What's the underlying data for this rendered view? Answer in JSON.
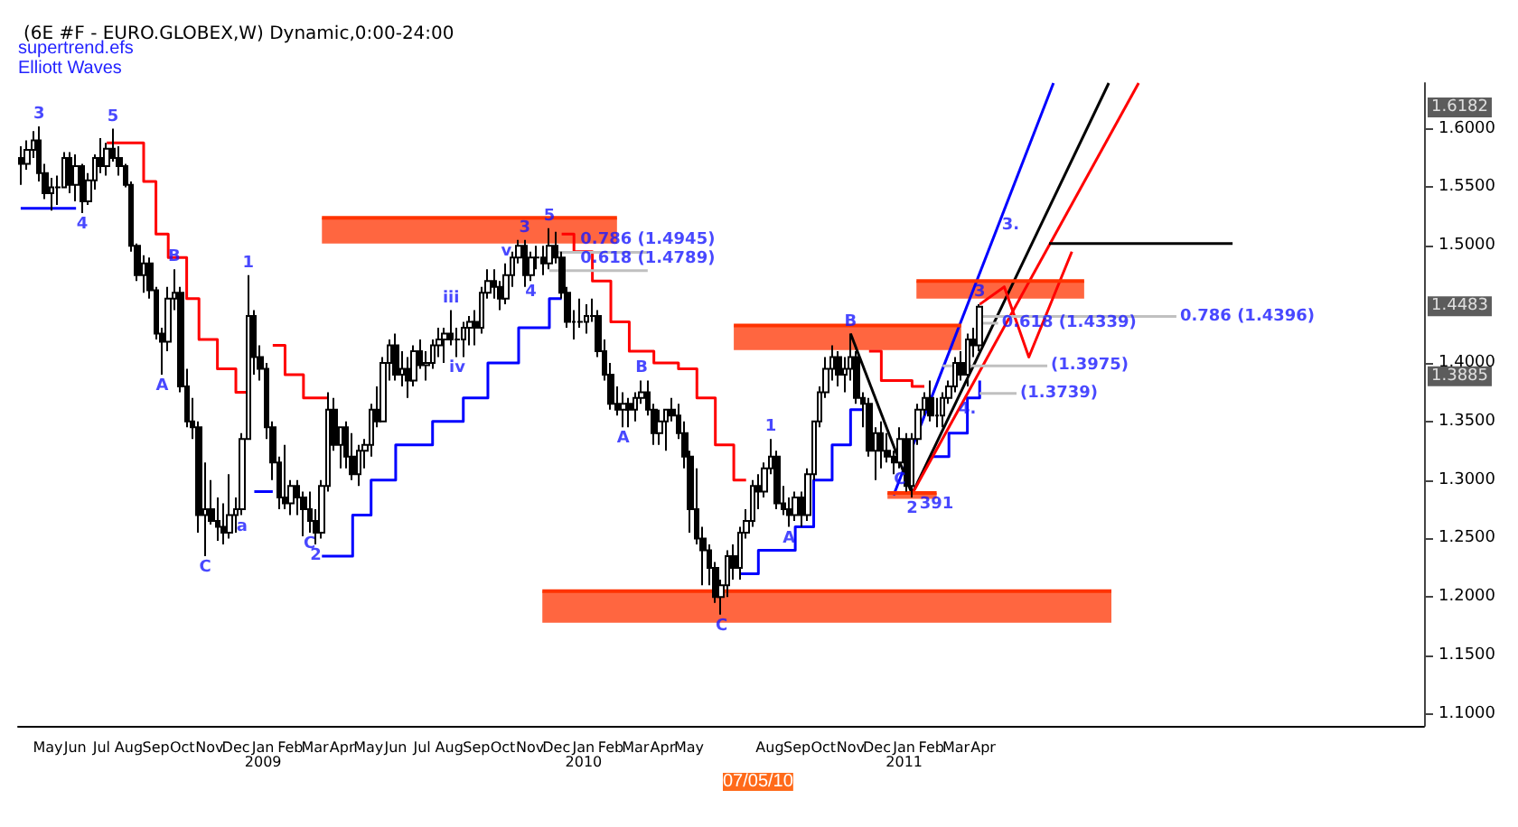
{
  "chart_data": {
    "type": "candlestick",
    "title": "(6E #F - EURO.GLOBEX,W) Dynamic,0:00-24:00",
    "x": [
      "2008-03-31",
      "2008-04-07",
      "2008-04-14",
      "2008-04-21",
      "2008-04-28",
      "2008-05-05",
      "2008-05-12",
      "2008-05-19",
      "2008-05-26",
      "2008-06-02",
      "2008-06-09",
      "2008-06-16",
      "2008-06-23",
      "2008-06-30",
      "2008-07-07",
      "2008-07-14",
      "2008-07-21",
      "2008-07-28",
      "2008-08-04",
      "2008-08-11",
      "2008-08-18",
      "2008-08-25",
      "2008-09-01",
      "2008-09-08",
      "2008-09-15",
      "2008-09-22",
      "2008-09-29",
      "2008-10-06",
      "2008-10-13",
      "2008-10-20",
      "2008-10-27",
      "2008-11-03",
      "2008-11-10",
      "2008-11-17",
      "2008-11-24",
      "2008-12-01",
      "2008-12-08",
      "2008-12-15",
      "2008-12-22",
      "2008-12-29",
      "2009-01-05",
      "2009-01-12",
      "2009-01-19",
      "2009-01-26",
      "2009-02-02",
      "2009-02-09",
      "2009-02-16",
      "2009-02-23",
      "2009-03-02",
      "2009-03-09",
      "2009-03-16",
      "2009-03-23",
      "2009-03-30",
      "2009-04-06",
      "2009-04-13",
      "2009-04-20",
      "2009-04-27",
      "2009-05-04",
      "2009-05-11",
      "2009-05-18",
      "2009-05-25",
      "2009-06-01",
      "2009-06-08",
      "2009-06-15",
      "2009-06-22",
      "2009-06-29",
      "2009-07-06",
      "2009-07-13",
      "2009-07-20",
      "2009-07-27",
      "2009-08-03",
      "2009-08-10",
      "2009-08-17",
      "2009-08-24",
      "2009-08-31",
      "2009-09-07",
      "2009-09-14",
      "2009-09-21",
      "2009-09-28",
      "2009-10-05",
      "2009-10-12",
      "2009-10-19",
      "2009-10-26",
      "2009-11-02",
      "2009-11-09",
      "2009-11-16",
      "2009-11-23",
      "2009-11-30",
      "2009-12-07",
      "2009-12-14",
      "2009-12-21",
      "2009-12-28",
      "2010-01-04",
      "2010-01-11",
      "2010-01-18",
      "2010-01-25",
      "2010-02-01",
      "2010-02-08",
      "2010-02-15",
      "2010-02-22",
      "2010-03-01",
      "2010-03-08",
      "2010-03-15",
      "2010-03-22",
      "2010-03-29",
      "2010-04-05",
      "2010-04-12",
      "2010-04-19",
      "2010-04-26",
      "2010-05-03",
      "2010-05-10",
      "2010-05-17",
      "2010-05-24",
      "2010-05-31",
      "2010-06-07",
      "2010-06-14",
      "2010-06-21",
      "2010-06-28",
      "2010-07-05",
      "2010-07-12",
      "2010-07-19",
      "2010-07-26",
      "2010-08-02",
      "2010-08-09",
      "2010-08-16",
      "2010-08-23",
      "2010-08-30",
      "2010-09-06",
      "2010-09-13",
      "2010-09-20",
      "2010-09-27",
      "2010-10-04",
      "2010-10-11",
      "2010-10-18",
      "2010-10-25",
      "2010-11-01",
      "2010-11-08",
      "2010-11-15",
      "2010-11-22",
      "2010-11-29",
      "2010-12-06",
      "2010-12-13",
      "2010-12-20",
      "2010-12-27",
      "2011-01-03",
      "2011-01-10",
      "2011-01-17",
      "2011-01-24",
      "2011-01-31",
      "2011-02-07",
      "2011-02-14",
      "2011-02-21",
      "2011-02-28",
      "2011-03-07",
      "2011-03-14",
      "2011-03-21",
      "2011-03-28"
    ],
    "ohlc": [
      [
        1.575,
        1.585,
        1.552,
        1.57
      ],
      [
        1.57,
        1.59,
        1.565,
        1.582
      ],
      [
        1.582,
        1.598,
        1.575,
        1.59
      ],
      [
        1.59,
        1.602,
        1.555,
        1.562
      ],
      [
        1.562,
        1.57,
        1.54,
        1.545
      ],
      [
        1.545,
        1.558,
        1.53,
        1.55
      ],
      [
        1.55,
        1.56,
        1.535,
        1.55
      ],
      [
        1.55,
        1.58,
        1.55,
        1.575
      ],
      [
        1.575,
        1.58,
        1.545,
        1.552
      ],
      [
        1.552,
        1.578,
        1.538,
        1.568
      ],
      [
        1.568,
        1.57,
        1.528,
        1.538
      ],
      [
        1.538,
        1.562,
        1.535,
        1.556
      ],
      [
        1.556,
        1.578,
        1.548,
        1.575
      ],
      [
        1.575,
        1.592,
        1.562,
        1.568
      ],
      [
        1.568,
        1.588,
        1.56,
        1.583
      ],
      [
        1.583,
        1.6,
        1.572,
        1.575
      ],
      [
        1.575,
        1.585,
        1.56,
        1.568
      ],
      [
        1.568,
        1.57,
        1.55,
        1.552
      ],
      [
        1.552,
        1.555,
        1.495,
        1.5
      ],
      [
        1.5,
        1.502,
        1.47,
        1.475
      ],
      [
        1.475,
        1.492,
        1.46,
        1.485
      ],
      [
        1.485,
        1.49,
        1.455,
        1.462
      ],
      [
        1.462,
        1.465,
        1.42,
        1.425
      ],
      [
        1.425,
        1.43,
        1.39,
        1.418
      ],
      [
        1.418,
        1.465,
        1.41,
        1.455
      ],
      [
        1.455,
        1.48,
        1.445,
        1.46
      ],
      [
        1.46,
        1.465,
        1.375,
        1.38
      ],
      [
        1.38,
        1.395,
        1.345,
        1.35
      ],
      [
        1.35,
        1.37,
        1.335,
        1.345
      ],
      [
        1.345,
        1.35,
        1.255,
        1.27
      ],
      [
        1.27,
        1.315,
        1.235,
        1.275
      ],
      [
        1.275,
        1.3,
        1.262,
        1.265
      ],
      [
        1.265,
        1.285,
        1.248,
        1.26
      ],
      [
        1.26,
        1.28,
        1.245,
        1.255
      ],
      [
        1.255,
        1.305,
        1.25,
        1.27
      ],
      [
        1.27,
        1.285,
        1.255,
        1.275
      ],
      [
        1.275,
        1.34,
        1.27,
        1.335
      ],
      [
        1.335,
        1.475,
        1.335,
        1.44
      ],
      [
        1.44,
        1.445,
        1.39,
        1.405
      ],
      [
        1.405,
        1.415,
        1.385,
        1.395
      ],
      [
        1.395,
        1.4,
        1.335,
        1.345
      ],
      [
        1.345,
        1.35,
        1.3,
        1.315
      ],
      [
        1.315,
        1.32,
        1.275,
        1.285
      ],
      [
        1.285,
        1.33,
        1.275,
        1.28
      ],
      [
        1.28,
        1.3,
        1.27,
        1.295
      ],
      [
        1.295,
        1.3,
        1.27,
        1.285
      ],
      [
        1.285,
        1.29,
        1.252,
        1.275
      ],
      [
        1.275,
        1.29,
        1.255,
        1.265
      ],
      [
        1.265,
        1.275,
        1.245,
        1.255
      ],
      [
        1.255,
        1.3,
        1.25,
        1.295
      ],
      [
        1.295,
        1.375,
        1.29,
        1.36
      ],
      [
        1.36,
        1.37,
        1.325,
        1.33
      ],
      [
        1.33,
        1.345,
        1.31,
        1.345
      ],
      [
        1.345,
        1.35,
        1.31,
        1.32
      ],
      [
        1.32,
        1.34,
        1.3,
        1.305
      ],
      [
        1.305,
        1.33,
        1.295,
        1.325
      ],
      [
        1.325,
        1.335,
        1.31,
        1.33
      ],
      [
        1.33,
        1.365,
        1.32,
        1.36
      ],
      [
        1.36,
        1.38,
        1.345,
        1.35
      ],
      [
        1.35,
        1.405,
        1.35,
        1.4
      ],
      [
        1.4,
        1.42,
        1.385,
        1.415
      ],
      [
        1.415,
        1.425,
        1.385,
        1.39
      ],
      [
        1.39,
        1.41,
        1.38,
        1.395
      ],
      [
        1.395,
        1.405,
        1.37,
        1.385
      ],
      [
        1.385,
        1.415,
        1.38,
        1.41
      ],
      [
        1.41,
        1.42,
        1.395,
        1.398
      ],
      [
        1.398,
        1.41,
        1.385,
        1.4
      ],
      [
        1.4,
        1.42,
        1.395,
        1.415
      ],
      [
        1.415,
        1.43,
        1.405,
        1.42
      ],
      [
        1.42,
        1.43,
        1.4,
        1.425
      ],
      [
        1.425,
        1.445,
        1.415,
        1.42
      ],
      [
        1.42,
        1.43,
        1.405,
        1.42
      ],
      [
        1.42,
        1.435,
        1.405,
        1.43
      ],
      [
        1.43,
        1.44,
        1.415,
        1.435
      ],
      [
        1.435,
        1.445,
        1.415,
        1.43
      ],
      [
        1.43,
        1.465,
        1.425,
        1.46
      ],
      [
        1.46,
        1.48,
        1.455,
        1.47
      ],
      [
        1.47,
        1.48,
        1.455,
        1.465
      ],
      [
        1.465,
        1.47,
        1.445,
        1.455
      ],
      [
        1.455,
        1.485,
        1.45,
        1.475
      ],
      [
        1.475,
        1.495,
        1.465,
        1.49
      ],
      [
        1.49,
        1.505,
        1.485,
        1.5
      ],
      [
        1.5,
        1.505,
        1.465,
        1.475
      ],
      [
        1.475,
        1.495,
        1.47,
        1.49
      ],
      [
        1.49,
        1.5,
        1.48,
        1.49
      ],
      [
        1.49,
        1.5,
        1.475,
        1.485
      ],
      [
        1.485,
        1.515,
        1.48,
        1.5
      ],
      [
        1.5,
        1.512,
        1.485,
        1.49
      ],
      [
        1.49,
        1.495,
        1.455,
        1.46
      ],
      [
        1.46,
        1.465,
        1.43,
        1.435
      ],
      [
        1.435,
        1.445,
        1.42,
        1.435
      ],
      [
        1.435,
        1.455,
        1.43,
        1.435
      ],
      [
        1.435,
        1.45,
        1.425,
        1.44
      ],
      [
        1.44,
        1.455,
        1.435,
        1.44
      ],
      [
        1.44,
        1.445,
        1.405,
        1.41
      ],
      [
        1.41,
        1.42,
        1.385,
        1.39
      ],
      [
        1.39,
        1.4,
        1.36,
        1.365
      ],
      [
        1.365,
        1.38,
        1.355,
        1.36
      ],
      [
        1.36,
        1.375,
        1.345,
        1.365
      ],
      [
        1.365,
        1.37,
        1.345,
        1.36
      ],
      [
        1.36,
        1.375,
        1.35,
        1.37
      ],
      [
        1.37,
        1.385,
        1.365,
        1.375
      ],
      [
        1.375,
        1.385,
        1.355,
        1.36
      ],
      [
        1.36,
        1.365,
        1.33,
        1.34
      ],
      [
        1.34,
        1.36,
        1.33,
        1.35
      ],
      [
        1.35,
        1.36,
        1.325,
        1.36
      ],
      [
        1.36,
        1.37,
        1.35,
        1.355
      ],
      [
        1.355,
        1.365,
        1.335,
        1.34
      ],
      [
        1.34,
        1.35,
        1.31,
        1.32
      ],
      [
        1.32,
        1.325,
        1.255,
        1.275
      ],
      [
        1.275,
        1.31,
        1.245,
        1.25
      ],
      [
        1.25,
        1.26,
        1.21,
        1.24
      ],
      [
        1.24,
        1.245,
        1.21,
        1.225
      ],
      [
        1.225,
        1.23,
        1.195,
        1.2
      ],
      [
        1.2,
        1.215,
        1.185,
        1.21
      ],
      [
        1.21,
        1.24,
        1.2,
        1.235
      ],
      [
        1.235,
        1.245,
        1.215,
        1.225
      ],
      [
        1.225,
        1.26,
        1.215,
        1.255
      ],
      [
        1.255,
        1.275,
        1.25,
        1.265
      ],
      [
        1.265,
        1.3,
        1.26,
        1.295
      ],
      [
        1.295,
        1.305,
        1.275,
        1.29
      ],
      [
        1.29,
        1.315,
        1.285,
        1.31
      ],
      [
        1.31,
        1.335,
        1.305,
        1.32
      ],
      [
        1.32,
        1.325,
        1.275,
        1.28
      ],
      [
        1.28,
        1.295,
        1.27,
        1.275
      ],
      [
        1.275,
        1.285,
        1.26,
        1.27
      ],
      [
        1.27,
        1.29,
        1.265,
        1.285
      ],
      [
        1.285,
        1.29,
        1.26,
        1.27
      ],
      [
        1.27,
        1.31,
        1.265,
        1.305
      ],
      [
        1.305,
        1.35,
        1.3,
        1.35
      ],
      [
        1.35,
        1.38,
        1.345,
        1.375
      ],
      [
        1.375,
        1.405,
        1.37,
        1.395
      ],
      [
        1.395,
        1.415,
        1.385,
        1.405
      ],
      [
        1.405,
        1.41,
        1.38,
        1.39
      ],
      [
        1.39,
        1.405,
        1.375,
        1.395
      ],
      [
        1.395,
        1.425,
        1.385,
        1.405
      ],
      [
        1.405,
        1.41,
        1.365,
        1.37
      ],
      [
        1.37,
        1.375,
        1.345,
        1.365
      ],
      [
        1.365,
        1.37,
        1.32,
        1.325
      ],
      [
        1.325,
        1.345,
        1.3,
        1.34
      ],
      [
        1.34,
        1.35,
        1.31,
        1.325
      ],
      [
        1.325,
        1.34,
        1.315,
        1.32
      ],
      [
        1.32,
        1.325,
        1.305,
        1.315
      ],
      [
        1.315,
        1.345,
        1.31,
        1.335
      ],
      [
        1.335,
        1.34,
        1.29,
        1.295
      ],
      [
        1.295,
        1.34,
        1.285,
        1.335
      ],
      [
        1.335,
        1.365,
        1.33,
        1.36
      ],
      [
        1.36,
        1.375,
        1.355,
        1.37
      ],
      [
        1.37,
        1.385,
        1.35,
        1.355
      ],
      [
        1.355,
        1.37,
        1.345,
        1.355
      ],
      [
        1.355,
        1.375,
        1.345,
        1.37
      ],
      [
        1.37,
        1.385,
        1.365,
        1.38
      ],
      [
        1.38,
        1.405,
        1.375,
        1.4
      ],
      [
        1.4,
        1.41,
        1.385,
        1.39
      ],
      [
        1.39,
        1.425,
        1.38,
        1.42
      ],
      [
        1.42,
        1.43,
        1.405,
        1.415
      ],
      [
        1.415,
        1.45,
        1.41,
        1.448
      ]
    ],
    "color": "#000000",
    "series": [
      {
        "type": "step",
        "color": "#ff0000",
        "x": [
          "2008-07-07",
          "2008-08-04",
          "2008-08-18",
          "2008-09-01",
          "2008-09-15",
          "2008-10-06",
          "2008-10-20",
          "2008-11-10",
          "2008-12-01",
          "2008-12-15",
          "2008-12-16",
          "2009-01-12",
          "2009-01-26",
          "2009-02-16",
          "2009-03-16",
          "2009-03-17",
          "2009-12-07",
          "2009-12-21",
          "2010-01-11",
          "2010-02-01",
          "2010-02-22",
          "2010-03-22",
          "2010-04-19",
          "2010-05-10",
          "2010-05-31",
          "2010-06-21",
          "2010-07-05",
          "2010-07-06",
          "2010-11-22",
          "2010-12-06",
          "2011-01-10",
          "2011-01-24"
        ],
        "values": [
          1.588,
          1.588,
          1.555,
          1.51,
          1.49,
          1.455,
          1.42,
          1.395,
          1.375,
          1.375,
          null,
          1.415,
          1.39,
          1.37,
          1.37,
          null,
          1.51,
          1.495,
          1.47,
          1.435,
          1.41,
          1.4,
          1.395,
          1.37,
          1.33,
          1.3,
          1.3,
          null,
          1.41,
          1.385,
          1.38,
          1.38
        ]
      },
      {
        "type": "step",
        "color": "#0000ff",
        "x": [
          "2008-03-31",
          "2008-06-02",
          "2008-06-03",
          "2008-12-22",
          "2009-01-12",
          "2009-01-13",
          "2009-03-09",
          "2009-04-13",
          "2009-05-04",
          "2009-06-01",
          "2009-07-13",
          "2009-08-17",
          "2009-09-14",
          "2009-10-19",
          "2009-11-23",
          "2009-12-07",
          "2009-12-08",
          "2010-06-28",
          "2010-07-19",
          "2010-08-30",
          "2010-09-20",
          "2010-10-11",
          "2010-11-01",
          "2010-11-15",
          "2010-11-16",
          "2011-01-31",
          "2011-02-21",
          "2011-03-14",
          "2011-03-28"
        ],
        "values": [
          1.532,
          1.532,
          null,
          1.29,
          1.29,
          null,
          1.235,
          1.27,
          1.3,
          1.33,
          1.35,
          1.37,
          1.4,
          1.43,
          1.455,
          1.455,
          null,
          1.22,
          1.24,
          1.26,
          1.3,
          1.33,
          1.36,
          1.36,
          null,
          1.32,
          1.34,
          1.37,
          1.385
        ]
      },
      {
        "type": "line",
        "color": "#0000ff",
        "x": [
          "2010-12-20",
          "2011-06-20"
        ],
        "values": [
          1.287,
          1.639
        ]
      },
      {
        "type": "line",
        "color": "#000000",
        "x": [
          "2011-01-10",
          "2011-08-22"
        ],
        "values": [
          1.288,
          1.639
        ]
      },
      {
        "type": "line",
        "color": "#ff0000",
        "x": [
          "2011-01-10",
          "2011-09-25"
        ],
        "values": [
          1.288,
          1.639
        ]
      },
      {
        "type": "line",
        "color": "#000000",
        "x": [
          "2010-11-01",
          "2011-01-10"
        ],
        "values": [
          1.425,
          1.288
        ]
      },
      {
        "type": "line",
        "color": "#000000",
        "x": [
          "2011-06-15",
          "2012-01-10"
        ],
        "values": [
          1.502,
          1.502
        ]
      },
      {
        "type": "line",
        "color": "#ff0000",
        "x": [
          "2011-03-28",
          "2011-04-25",
          "2011-05-23",
          "2011-07-11"
        ],
        "values": [
          1.45,
          1.465,
          1.405,
          1.495
        ]
      },
      {
        "type": "line",
        "color": "#c0c0c0",
        "x": [
          "2009-11-23",
          "2010-03-15"
        ],
        "values": [
          1.4945,
          1.4945
        ]
      },
      {
        "type": "line",
        "color": "#c0c0c0",
        "x": [
          "2009-11-23",
          "2010-03-15"
        ],
        "values": [
          1.4789,
          1.4789
        ]
      },
      {
        "type": "line",
        "color": "#c0c0c0",
        "x": [
          "2011-03-28",
          "2011-11-07"
        ],
        "values": [
          1.4396,
          1.4396
        ]
      },
      {
        "type": "line",
        "color": "#c0c0c0",
        "x": [
          "2011-03-28",
          "2011-04-18"
        ],
        "values": [
          1.4339,
          1.4339
        ]
      },
      {
        "type": "line",
        "color": "#c0c0c0",
        "x": [
          "2011-02-14",
          "2011-06-13"
        ],
        "values": [
          1.3975,
          1.3975
        ]
      },
      {
        "type": "line",
        "color": "#c0c0c0",
        "x": [
          "2011-03-28",
          "2011-05-09"
        ],
        "values": [
          1.3739,
          1.3739
        ]
      },
      {
        "type": "line",
        "color": "#ff3300",
        "x": [
          "2009-03-09",
          "2010-02-08"
        ],
        "values": [
          1.524,
          1.524
        ],
        "lower": [
          1.502,
          1.502
        ],
        "upper": [
          1.524,
          1.524
        ]
      },
      {
        "type": "line",
        "color": "#ff3300",
        "x": [
          "2010-06-21",
          "2011-03-07"
        ],
        "values": [
          1.432,
          1.432
        ],
        "lower": [
          1.411,
          1.411
        ],
        "upper": [
          1.432,
          1.432
        ]
      },
      {
        "type": "line",
        "color": "#ff3300",
        "x": [
          "2009-11-15",
          "2011-08-25"
        ],
        "values": [
          1.205,
          1.205
        ],
        "lower": [
          1.178,
          1.178
        ],
        "upper": [
          1.205,
          1.205
        ]
      },
      {
        "type": "line",
        "color": "#ff3300",
        "x": [
          "2011-01-15",
          "2011-07-25"
        ],
        "values": [
          1.47,
          1.47
        ],
        "lower": [
          1.455,
          1.455
        ],
        "upper": [
          1.47,
          1.47
        ]
      },
      {
        "type": "line",
        "color": "#ff3300",
        "x": [
          "2010-12-13",
          "2011-02-07"
        ],
        "values": [
          1.289,
          1.289
        ],
        "lower": [
          1.284,
          1.284
        ],
        "upper": [
          1.289,
          1.289
        ]
      }
    ],
    "annotations": [
      "supertrend.efs",
      "Elliott Waves",
      "07/05/10",
      {
        "text": "3",
        "x": "2008-04-21",
        "y": 1.602
      },
      {
        "text": "4",
        "x": "2008-06-09",
        "y": 1.528
      },
      {
        "text": "5",
        "x": "2008-07-14",
        "y": 1.6
      },
      {
        "text": "B",
        "x": "2008-09-22",
        "y": 1.48
      },
      {
        "text": "A",
        "x": "2008-09-08",
        "y": 1.39
      },
      {
        "text": "C",
        "x": "2008-10-27",
        "y": 1.235
      },
      {
        "text": "1",
        "x": "2008-12-15",
        "y": 1.475
      },
      {
        "text": "a",
        "x": "2008-12-08",
        "y": 1.27
      },
      {
        "text": "C",
        "x": "2009-02-23",
        "y": 1.255
      },
      {
        "text": "2",
        "x": "2009-03-02",
        "y": 1.245
      },
      {
        "text": "iii",
        "x": "2009-08-03",
        "y": 1.445
      },
      {
        "text": "iv",
        "x": "2009-08-10",
        "y": 1.405
      },
      {
        "text": "v",
        "x": "2009-10-05",
        "y": 1.485
      },
      {
        "text": "3",
        "x": "2009-10-26",
        "y": 1.505
      },
      {
        "text": "4",
        "x": "2009-11-02",
        "y": 1.47
      },
      {
        "text": "5",
        "x": "2009-11-23",
        "y": 1.515
      },
      {
        "text": "0.786 (1.4945)",
        "x": "2010-03-15",
        "y": 1.4945
      },
      {
        "text": "0.618 (1.4789)",
        "x": "2010-03-15",
        "y": 1.4789
      },
      {
        "text": "A",
        "x": "2010-02-15",
        "y": 1.345
      },
      {
        "text": "B",
        "x": "2010-03-08",
        "y": 1.385
      },
      {
        "text": "C",
        "x": "2010-06-07",
        "y": 1.185
      },
      {
        "text": "1",
        "x": "2010-08-02",
        "y": 1.335
      },
      {
        "text": "A",
        "x": "2010-08-23",
        "y": 1.26
      },
      {
        "text": "B",
        "x": "2010-11-01",
        "y": 1.425
      },
      {
        "text": "C",
        "x": "2010-12-27",
        "y": 1.31
      },
      {
        "text": "2",
        "x": "2011-01-10",
        "y": 1.285
      },
      {
        "text": "391",
        "x": "2011-02-07",
        "y": 1.289
      },
      {
        "text": "3",
        "x": "2011-03-28",
        "y": 1.45
      },
      {
        "text": "3.",
        "x": "2011-04-18",
        "y": 1.517
      },
      {
        "text": "0.786 (1.4396)",
        "x": "2011-11-07",
        "y": 1.4396
      },
      {
        "text": "0.618 (1.4339)",
        "x": "2011-04-18",
        "y": 1.4339
      },
      {
        "text": "(1.3975)",
        "x": "2011-06-13",
        "y": 1.3975
      },
      {
        "text": "4.",
        "x": "2011-03-14",
        "y": 1.37
      },
      {
        "text": "(1.3739)",
        "x": "2011-05-09",
        "y": 1.3739
      },
      {
        "text": "1.6182",
        "y": 1.6182
      },
      {
        "text": "1.4483",
        "y": 1.4483
      },
      {
        "text": "1.3885",
        "y": 1.3885
      }
    ],
    "xlim": [
      "2008-03-28",
      "2012-08-15"
    ],
    "ylim": [
      1.09,
      1.639
    ],
    "xticks": [
      {
        "value": "2008-05-01",
        "label": "May"
      },
      {
        "value": "2008-06-01",
        "label": "Jun"
      },
      {
        "value": "2008-07-01",
        "label": "Jul"
      },
      {
        "value": "2008-08-01",
        "label": "Aug"
      },
      {
        "value": "2008-09-01",
        "label": "Sep"
      },
      {
        "value": "2008-10-01",
        "label": "Oct"
      },
      {
        "value": "2008-11-01",
        "label": "Nov"
      },
      {
        "value": "2008-12-01",
        "label": "Dec"
      },
      {
        "value": "2009-01-01",
        "label": "Jan\n2009"
      },
      {
        "value": "2009-02-01",
        "label": "Feb"
      },
      {
        "value": "2009-03-01",
        "label": "Mar"
      },
      {
        "value": "2009-04-01",
        "label": "Apr"
      },
      {
        "value": "2009-05-01",
        "label": "May"
      },
      {
        "value": "2009-06-01",
        "label": "Jun"
      },
      {
        "value": "2009-07-01",
        "label": "Jul"
      },
      {
        "value": "2009-08-01",
        "label": "Aug"
      },
      {
        "value": "2009-09-01",
        "label": "Sep"
      },
      {
        "value": "2009-10-01",
        "label": "Oct"
      },
      {
        "value": "2009-11-01",
        "label": "Nov"
      },
      {
        "value": "2009-12-01",
        "label": "Dec"
      },
      {
        "value": "2010-01-01",
        "label": "Jan\n2010"
      },
      {
        "value": "2010-02-01",
        "label": "Feb"
      },
      {
        "value": "2010-03-01",
        "label": "Mar"
      },
      {
        "value": "2010-04-01",
        "label": "Apr"
      },
      {
        "value": "2010-05-01",
        "label": "May"
      },
      {
        "value": "2010-08-01",
        "label": "Aug"
      },
      {
        "value": "2010-09-01",
        "label": "Sep"
      },
      {
        "value": "2010-10-01",
        "label": "Oct"
      },
      {
        "value": "2010-11-01",
        "label": "Nov"
      },
      {
        "value": "2010-12-01",
        "label": "Dec"
      },
      {
        "value": "2011-01-01",
        "label": "Jan\n2011"
      },
      {
        "value": "2011-02-01",
        "label": "Feb"
      },
      {
        "value": "2011-03-01",
        "label": "Mar"
      },
      {
        "value": "2011-04-01",
        "label": "Apr"
      }
    ],
    "yticks": [
      {
        "value": 1.1,
        "label": "1.1000"
      },
      {
        "value": 1.15,
        "label": "1.1500"
      },
      {
        "value": 1.2,
        "label": "1.2000"
      },
      {
        "value": 1.25,
        "label": "1.2500"
      },
      {
        "value": 1.3,
        "label": "1.3000"
      },
      {
        "value": 1.35,
        "label": "1.3500"
      },
      {
        "value": 1.4,
        "label": "1.4000"
      },
      {
        "value": 1.5,
        "label": "1.5000"
      },
      {
        "value": 1.55,
        "label": "1.5500"
      },
      {
        "value": 1.6,
        "label": "1.6000"
      }
    ],
    "grid": false
  }
}
